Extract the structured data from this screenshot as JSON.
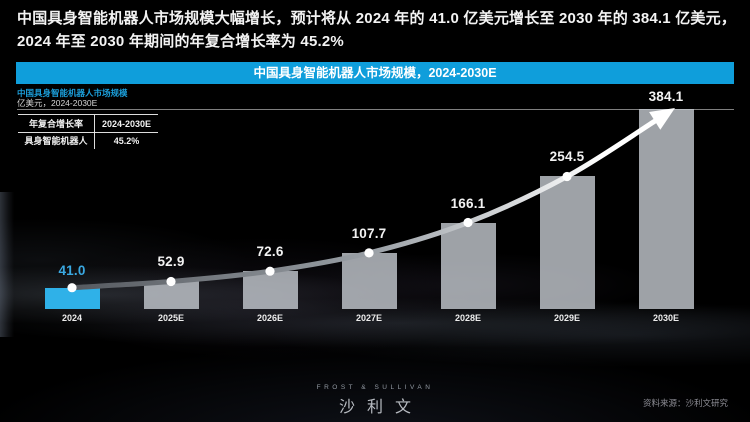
{
  "headline": "中国具身智能机器人市场规模大幅增长，预计将从 2024 年的 41.0 亿美元增长至 2030 年的 384.1 亿美元，2024 年至 2030 年期间的年复合增长率为 45.2%",
  "banner": {
    "title": "中国具身智能机器人市场规模，2024-2030E",
    "bg_color": "#0f9edb"
  },
  "chart_header": {
    "subtitle": "中国具身智能机器人市场规模",
    "unit_line": "亿美元，2024-2030E"
  },
  "legend_table": {
    "header": [
      "年复合增长率",
      "2024-2030E"
    ],
    "row": [
      "具身智能机器人",
      "45.2%"
    ]
  },
  "chart_data": {
    "type": "bar",
    "title": "中国具身智能机器人市场规模，2024-2030E",
    "unit": "亿美元",
    "categories": [
      "2024",
      "2025E",
      "2026E",
      "2027E",
      "2028E",
      "2029E",
      "2030E"
    ],
    "values": [
      41.0,
      52.9,
      72.6,
      107.7,
      166.1,
      254.5,
      384.1
    ],
    "ylim": [
      0,
      384.1
    ],
    "cagr": "45.2%",
    "cagr_period": "2024-2030E",
    "trend_line": true,
    "highlight_index": 0,
    "colors": {
      "bar_highlight": "#2fb1e8",
      "bar_default": "rgba(197,202,209,0.80)",
      "label_highlight": "#3aa9e2",
      "label_default": "#f2f2f2",
      "trend_start": "#55595f",
      "trend_end": "#ffffff",
      "dot": "#ffffff"
    }
  },
  "footer": {
    "logo_top": "FROST & SULLIVAN",
    "logo_main": "沙利文",
    "source": "资料来源：沙利文研究"
  }
}
